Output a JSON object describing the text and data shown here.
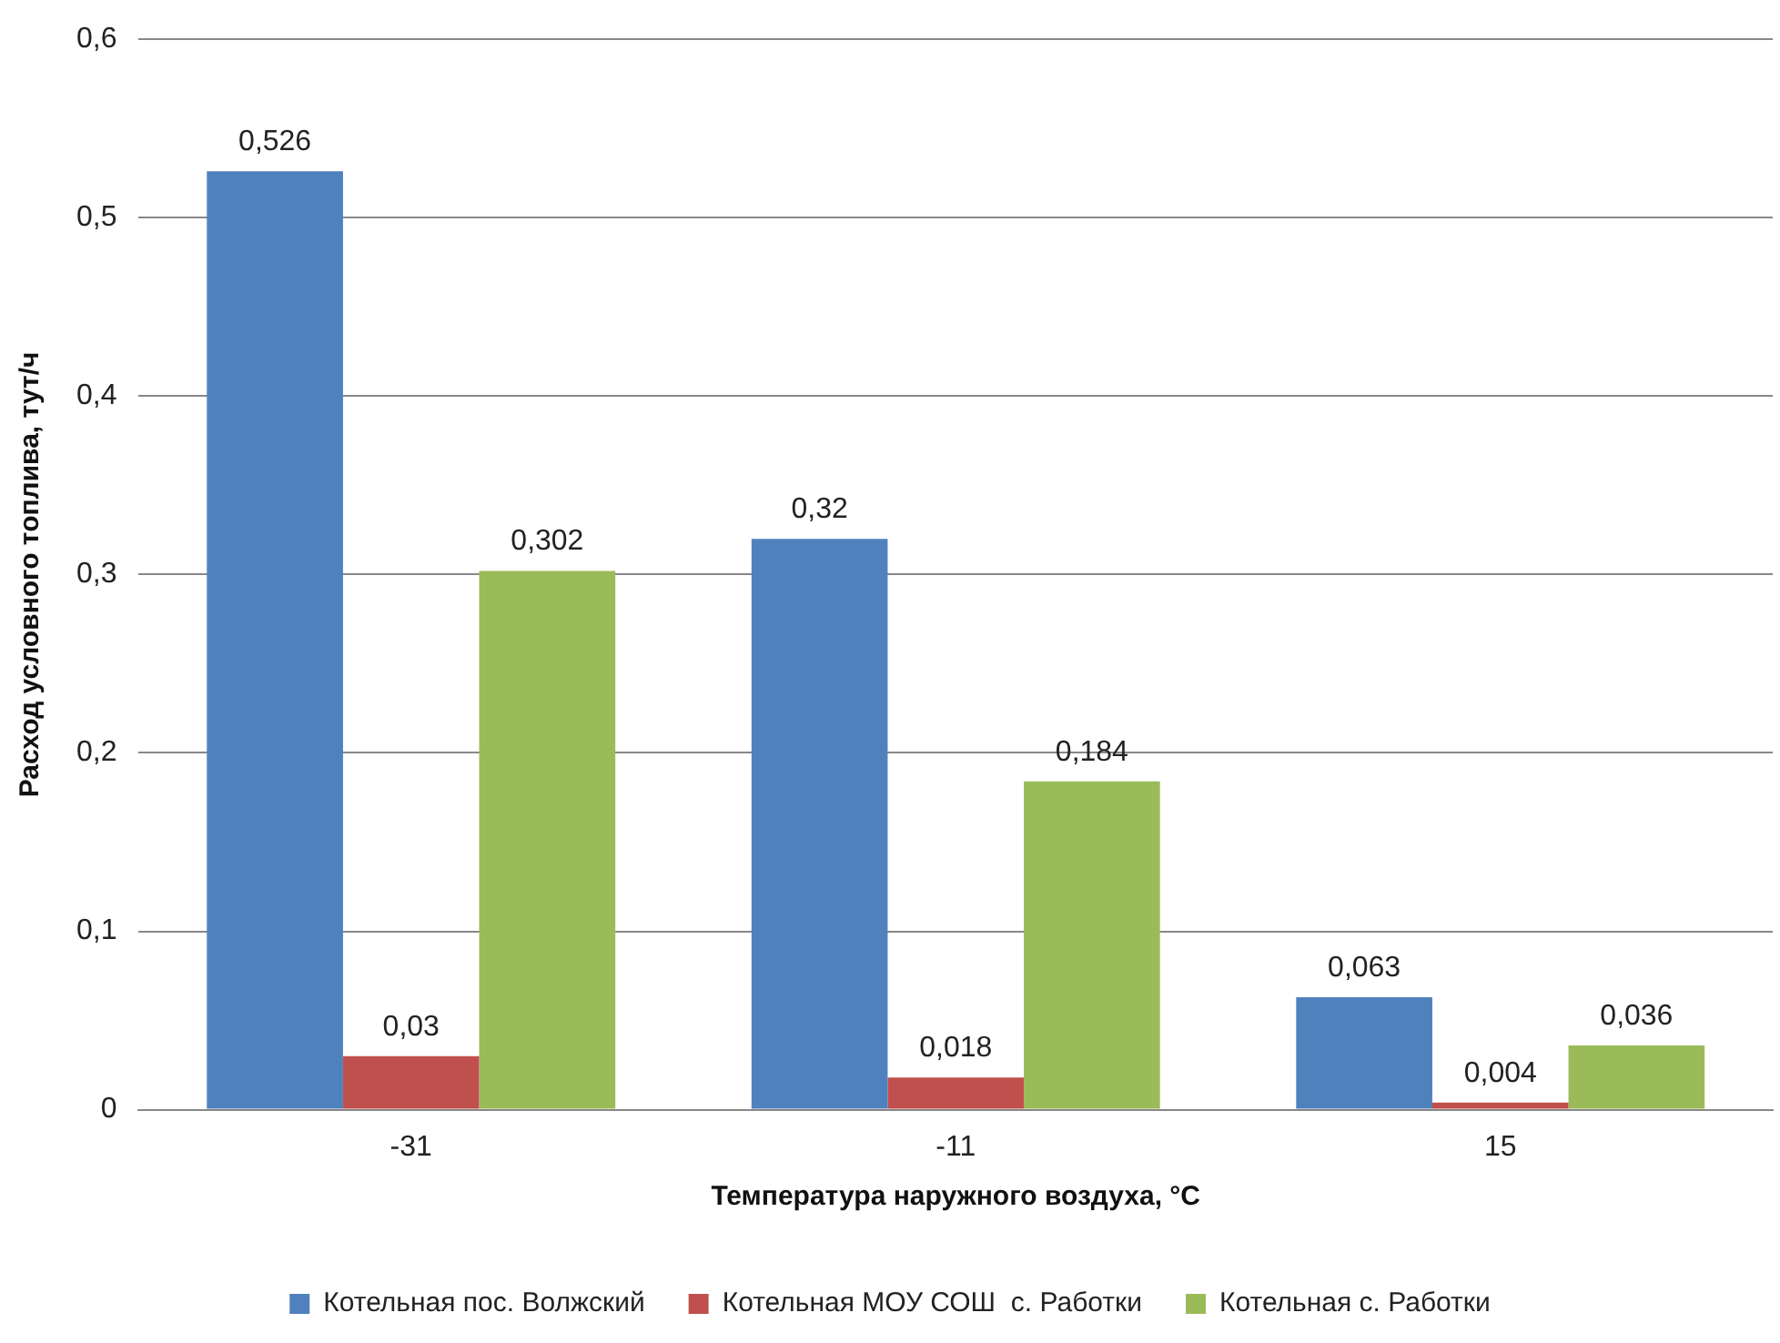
{
  "chart_data": {
    "type": "bar",
    "xlabel": "Температура наружного воздуха, °C",
    "ylabel": "Расход условного топлива, тут/ч",
    "categories": [
      "-31",
      "-11",
      "15"
    ],
    "series": [
      {
        "name": "Котельная пос. Волжский",
        "color": "#4f81bd",
        "values": [
          0.526,
          0.32,
          0.063
        ],
        "value_labels": [
          "0,526",
          "0,32",
          "0,063"
        ]
      },
      {
        "name": "Котельная МОУ СОШ  с. Работки",
        "color": "#c0504d",
        "values": [
          0.03,
          0.018,
          0.004
        ],
        "value_labels": [
          "0,03",
          "0,018",
          "0,004"
        ]
      },
      {
        "name": "Котельная с. Работки",
        "color": "#9bbb59",
        "values": [
          0.302,
          0.184,
          0.036
        ],
        "value_labels": [
          "0,302",
          "0,184",
          "0,036"
        ]
      }
    ],
    "ylim": [
      0,
      0.6
    ],
    "yticks": [
      {
        "value": 0,
        "label": "0"
      },
      {
        "value": 0.1,
        "label": "0,1"
      },
      {
        "value": 0.2,
        "label": "0,2"
      },
      {
        "value": 0.3,
        "label": "0,3"
      },
      {
        "value": 0.4,
        "label": "0,4"
      },
      {
        "value": 0.5,
        "label": "0,5"
      },
      {
        "value": 0.6,
        "label": "0,6"
      }
    ],
    "grid": "y",
    "legend": "bottom"
  }
}
